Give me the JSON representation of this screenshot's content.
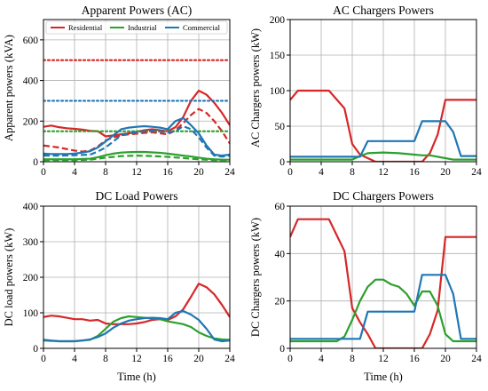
{
  "colors": {
    "residential": "#d62728",
    "industrial": "#2ca02c",
    "commercial": "#1f77b4",
    "grid": "#b0b0b0"
  },
  "chart_data": [
    {
      "type": "line",
      "title": "Apparent Powers (AC)",
      "xlabel": "",
      "ylabel": "Apparent powers (kVA)",
      "xlim": [
        0,
        24
      ],
      "ylim": [
        0,
        700
      ],
      "xticks": [
        0,
        4,
        8,
        12,
        16,
        20,
        24
      ],
      "yticks": [
        0,
        200,
        400,
        600
      ],
      "grid": true,
      "legend": {
        "placement": "top",
        "entries": [
          "Residential",
          "Industrial",
          "Commercial"
        ]
      },
      "series": [
        {
          "name": "Residential",
          "color": "#d62728",
          "style": "solid",
          "x": [
            0,
            1,
            2,
            3,
            4,
            5,
            6,
            7,
            8,
            9,
            10,
            11,
            12,
            13,
            14,
            15,
            16,
            17,
            18,
            19,
            20,
            21,
            22,
            23,
            24
          ],
          "y": [
            172,
            178,
            170,
            165,
            162,
            158,
            152,
            150,
            125,
            130,
            135,
            140,
            148,
            155,
            160,
            155,
            150,
            170,
            220,
            300,
            350,
            330,
            290,
            240,
            180
          ]
        },
        {
          "name": "Residential",
          "color": "#d62728",
          "style": "dashed",
          "x": [
            0,
            2,
            4,
            5,
            6,
            7,
            8,
            9,
            10,
            11,
            12,
            13,
            14,
            15,
            16,
            17,
            18,
            19,
            20,
            21,
            22,
            23,
            24
          ],
          "y": [
            80,
            70,
            55,
            50,
            55,
            75,
            105,
            120,
            130,
            135,
            138,
            142,
            145,
            140,
            135,
            155,
            190,
            230,
            260,
            240,
            200,
            150,
            90
          ]
        },
        {
          "name": "Residential",
          "color": "#d62728",
          "style": "dotted",
          "x": [
            0,
            24
          ],
          "y": [
            500,
            500
          ]
        },
        {
          "name": "Industrial",
          "color": "#2ca02c",
          "style": "solid",
          "x": [
            0,
            2,
            4,
            6,
            7,
            8,
            9,
            10,
            11,
            12,
            13,
            14,
            15,
            16,
            17,
            18,
            19,
            20,
            21,
            22,
            23,
            24
          ],
          "y": [
            12,
            12,
            12,
            15,
            22,
            32,
            40,
            45,
            47,
            48,
            48,
            46,
            44,
            40,
            35,
            30,
            26,
            20,
            15,
            12,
            10,
            10
          ]
        },
        {
          "name": "Industrial",
          "color": "#2ca02c",
          "style": "dashed",
          "x": [
            0,
            2,
            4,
            6,
            8,
            10,
            12,
            14,
            16,
            18,
            20,
            22,
            24
          ],
          "y": [
            8,
            8,
            8,
            10,
            20,
            28,
            30,
            28,
            24,
            18,
            12,
            8,
            8
          ]
        },
        {
          "name": "Industrial",
          "color": "#2ca02c",
          "style": "dotted",
          "x": [
            0,
            24
          ],
          "y": [
            150,
            150
          ]
        },
        {
          "name": "Commercial",
          "color": "#1f77b4",
          "style": "solid",
          "x": [
            0,
            1,
            2,
            3,
            4,
            5,
            6,
            7,
            8,
            9,
            10,
            11,
            12,
            13,
            14,
            15,
            16,
            17,
            18,
            19,
            20,
            21,
            22,
            23,
            24
          ],
          "y": [
            40,
            38,
            38,
            38,
            40,
            45,
            52,
            70,
            100,
            130,
            160,
            168,
            172,
            175,
            172,
            168,
            160,
            200,
            215,
            180,
            140,
            80,
            35,
            30,
            35
          ]
        },
        {
          "name": "Commercial",
          "color": "#1f77b4",
          "style": "dashed",
          "x": [
            0,
            2,
            4,
            6,
            7,
            8,
            9,
            10,
            11,
            12,
            13,
            14,
            15,
            16,
            17,
            18,
            19,
            20,
            21,
            22,
            23,
            24
          ],
          "y": [
            30,
            30,
            32,
            35,
            50,
            70,
            100,
            130,
            140,
            145,
            150,
            152,
            150,
            145,
            150,
            175,
            160,
            120,
            70,
            30,
            25,
            30
          ]
        },
        {
          "name": "Commercial",
          "color": "#1f77b4",
          "style": "dotted",
          "x": [
            0,
            24
          ],
          "y": [
            300,
            300
          ]
        }
      ]
    },
    {
      "type": "line",
      "title": "AC Chargers Powers",
      "xlabel": "",
      "ylabel": "AC Chargers powers (kW)",
      "xlim": [
        0,
        24
      ],
      "ylim": [
        0,
        200
      ],
      "xticks": [
        0,
        4,
        8,
        12,
        16,
        20,
        24
      ],
      "yticks": [
        0,
        50,
        100,
        150,
        200
      ],
      "grid": true,
      "series": [
        {
          "name": "Residential",
          "color": "#d62728",
          "x": [
            0,
            1,
            5,
            7,
            8,
            9,
            10,
            11,
            12,
            13,
            14,
            15,
            16,
            17,
            18,
            19,
            20,
            21,
            22,
            23,
            24
          ],
          "y": [
            87,
            100,
            100,
            75,
            25,
            10,
            5,
            0,
            0,
            0,
            0,
            0,
            0,
            0,
            12,
            38,
            87,
            87,
            87,
            87,
            87
          ]
        },
        {
          "name": "Industrial",
          "color": "#2ca02c",
          "x": [
            0,
            8,
            9,
            10,
            12,
            14,
            16,
            17,
            18,
            20,
            21,
            24
          ],
          "y": [
            3,
            3,
            8,
            12,
            13,
            12,
            10,
            9,
            9,
            5,
            3,
            3
          ]
        },
        {
          "name": "Commercial",
          "color": "#1f77b4",
          "x": [
            0,
            8,
            9,
            10,
            16,
            17,
            20,
            21,
            22,
            23,
            24
          ],
          "y": [
            7,
            7,
            7,
            29,
            29,
            57,
            57,
            42,
            8,
            8,
            8
          ]
        }
      ]
    },
    {
      "type": "line",
      "title": "DC Load Powers",
      "xlabel": "Time (h)",
      "ylabel": "DC load powers (kW)",
      "xlim": [
        0,
        24
      ],
      "ylim": [
        0,
        400
      ],
      "xticks": [
        0,
        4,
        8,
        12,
        16,
        20,
        24
      ],
      "yticks": [
        0,
        100,
        200,
        300,
        400
      ],
      "grid": true,
      "series": [
        {
          "name": "Residential",
          "color": "#d62728",
          "x": [
            0,
            1,
            2,
            3,
            4,
            5,
            6,
            7,
            8,
            9,
            10,
            11,
            12,
            13,
            14,
            15,
            16,
            17,
            18,
            19,
            20,
            21,
            22,
            23,
            24
          ],
          "y": [
            88,
            92,
            90,
            86,
            82,
            82,
            78,
            80,
            70,
            68,
            68,
            68,
            70,
            74,
            80,
            82,
            80,
            90,
            110,
            145,
            182,
            172,
            152,
            122,
            88
          ]
        },
        {
          "name": "Industrial",
          "color": "#2ca02c",
          "x": [
            0,
            2,
            4,
            6,
            7,
            8,
            9,
            10,
            11,
            12,
            13,
            14,
            15,
            16,
            17,
            18,
            19,
            20,
            21,
            22,
            23,
            24
          ],
          "y": [
            22,
            20,
            20,
            24,
            35,
            55,
            75,
            85,
            90,
            88,
            86,
            84,
            82,
            76,
            72,
            68,
            60,
            45,
            35,
            28,
            25,
            24
          ]
        },
        {
          "name": "Commercial",
          "color": "#1f77b4",
          "x": [
            0,
            1,
            2,
            3,
            4,
            5,
            6,
            7,
            8,
            9,
            10,
            11,
            12,
            13,
            14,
            15,
            16,
            17,
            18,
            19,
            20,
            21,
            22,
            23,
            24
          ],
          "y": [
            24,
            22,
            20,
            20,
            20,
            22,
            25,
            32,
            42,
            58,
            70,
            78,
            82,
            85,
            86,
            85,
            82,
            100,
            105,
            95,
            80,
            55,
            25,
            20,
            22
          ]
        }
      ]
    },
    {
      "type": "line",
      "title": "DC Chargers Powers",
      "xlabel": "Time (h)",
      "ylabel": "DC Chargers powers (kW)",
      "xlim": [
        0,
        24
      ],
      "ylim": [
        0,
        60
      ],
      "xticks": [
        0,
        4,
        8,
        12,
        16,
        20,
        24
      ],
      "yticks": [
        0,
        20,
        40,
        60
      ],
      "grid": true,
      "series": [
        {
          "name": "Residential",
          "color": "#d62728",
          "x": [
            0,
            1,
            5,
            7,
            8,
            9,
            10,
            11,
            12,
            13,
            14,
            15,
            16,
            17,
            18,
            19,
            20,
            21,
            22,
            23,
            24
          ],
          "y": [
            47,
            54.5,
            54.5,
            41,
            17,
            11,
            6,
            0,
            0,
            0,
            0,
            0,
            0,
            0,
            6,
            16,
            47,
            47,
            47,
            47,
            47
          ]
        },
        {
          "name": "Industrial",
          "color": "#2ca02c",
          "x": [
            0,
            4,
            6,
            7,
            8,
            9,
            10,
            11,
            12,
            13,
            14,
            15,
            16,
            17,
            18,
            19,
            20,
            21,
            22,
            23,
            24
          ],
          "y": [
            3,
            3,
            3,
            5,
            12,
            20,
            26,
            29,
            29,
            27,
            26,
            23,
            18,
            24,
            24,
            18,
            6,
            3,
            3,
            3,
            3
          ]
        },
        {
          "name": "Commercial",
          "color": "#1f77b4",
          "x": [
            0,
            8,
            9,
            10,
            16,
            17,
            20,
            21,
            22,
            23,
            24
          ],
          "y": [
            4,
            4,
            4,
            15.5,
            15.5,
            31,
            31,
            23,
            4,
            4,
            4
          ]
        }
      ]
    }
  ]
}
